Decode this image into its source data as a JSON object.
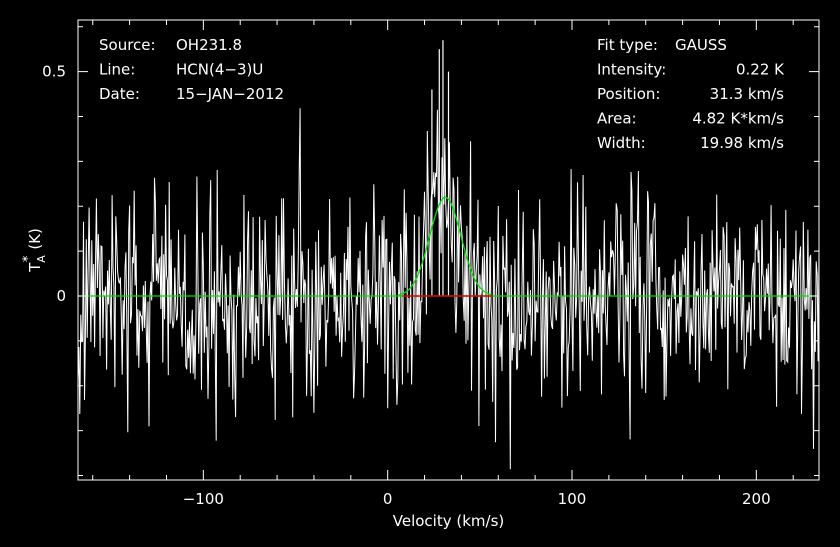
{
  "chart_data": {
    "type": "line",
    "xlabel": "Velocity (km/s)",
    "ylabel": "T*A (K)",
    "ylabel_main": "T",
    "ylabel_sub": "A",
    "ylabel_sup": "*",
    "ylabel_unit": "(K)",
    "xlim": [
      -168,
      234
    ],
    "ylim": [
      -0.41,
      0.615
    ],
    "x_ticks": [
      {
        "value": -100,
        "label": "−100"
      },
      {
        "value": 0,
        "label": "0"
      },
      {
        "value": 100,
        "label": "100"
      },
      {
        "value": 200,
        "label": "200"
      }
    ],
    "y_ticks": [
      {
        "value": 0,
        "label": "0"
      },
      {
        "value": 0.5,
        "label": "0.5"
      }
    ],
    "header_info": [
      {
        "key": "Source:",
        "value": "OH231.8"
      },
      {
        "key": "Line:",
        "value": "HCN(4−3)U"
      },
      {
        "key": "Date:",
        "value": "15−JAN−2012"
      }
    ],
    "fit_info": [
      {
        "key": "Fit type:",
        "value": "GAUSS"
      },
      {
        "key": "Intensity:",
        "value": "0.22 K"
      },
      {
        "key": "Position:",
        "value": "31.3 km/s"
      },
      {
        "key": "Area:",
        "value": "4.82 K*km/s"
      },
      {
        "key": "Width:",
        "value": "19.98 km/s"
      }
    ],
    "fit": {
      "type": "GAUSS",
      "intensity": 0.22,
      "position": 31.3,
      "fwhm": 19.98
    },
    "spectrum": {
      "color": "#ffffff",
      "x_start": -168,
      "x_end": 234,
      "channel_width": 0.5,
      "noise_rms": 0.12,
      "note_values": "noise channels drawn procedurally; peak region values below",
      "peak_points": [
        {
          "x": 24,
          "y": 0.46
        },
        {
          "x": 28,
          "y": 0.55
        },
        {
          "x": 30,
          "y": 0.57
        },
        {
          "x": 33,
          "y": 0.5
        }
      ]
    },
    "baseline": {
      "value": 0,
      "color": "#00e000"
    },
    "window_segment": {
      "x_from": 8,
      "x_to": 57,
      "color": "#e00000"
    },
    "colors": {
      "background": "#000000",
      "axes": "#ffffff",
      "fit": "#00e000",
      "window": "#e00000"
    }
  }
}
